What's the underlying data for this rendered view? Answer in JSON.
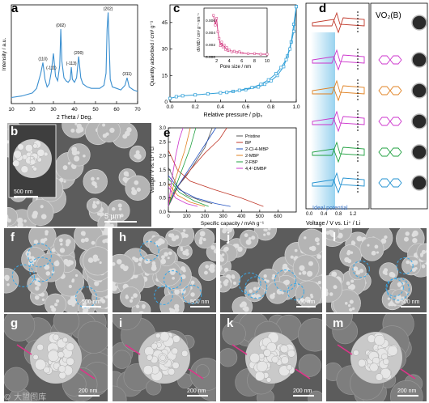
{
  "figure": {
    "panels": {
      "a": "a",
      "b": "b",
      "c": "c",
      "d": "d",
      "e": "e",
      "f": "f",
      "g": "g",
      "h": "h",
      "i": "i",
      "j": "j",
      "k": "k",
      "l": "l",
      "m": "m"
    },
    "watermark": "© 大盟图库"
  },
  "panel_b": {
    "scale_inset": "500 nm",
    "scale_main": "5 μm"
  },
  "sem": {
    "top_scale": "500 nm",
    "bottom_scale": "200 nm"
  },
  "panel_d": {
    "title": "VO₂(B)",
    "ideal_label": "Ideal potential",
    "xlabel": "Voltage / V vs. Li⁺ / Li",
    "ticks": [
      "0.0",
      "0.4",
      "0.8",
      "1.2"
    ]
  },
  "chart_data": [
    {
      "type": "line",
      "panel": "a",
      "xlabel": "2 Theta / Deg.",
      "ylabel": "Intensity / a.u.",
      "xlim": [
        10,
        70
      ],
      "xticks": [
        10,
        20,
        30,
        40,
        50,
        60,
        70
      ],
      "peak_labels": [
        {
          "x": 25,
          "label": "(110)"
        },
        {
          "x": 29,
          "label": "(-111)"
        },
        {
          "x": 33.5,
          "label": "(002)"
        },
        {
          "x": 38.5,
          "label": "(-113)"
        },
        {
          "x": 42,
          "label": "(200)"
        },
        {
          "x": 56,
          "label": "(202)"
        },
        {
          "x": 65,
          "label": "(311)"
        }
      ],
      "x": [
        10,
        15,
        20,
        22,
        24,
        25,
        26,
        27,
        28,
        29,
        30,
        31,
        32,
        33,
        33.5,
        34,
        35,
        36,
        37,
        38,
        38.5,
        39,
        40,
        41,
        42,
        43,
        44,
        46,
        48,
        50,
        52,
        54,
        55,
        55.5,
        56,
        56.5,
        57,
        58,
        60,
        62,
        64,
        65,
        66,
        68,
        70
      ],
      "y": [
        38,
        40,
        44,
        50,
        70,
        84,
        62,
        52,
        56,
        72,
        96,
        66,
        60,
        80,
        128,
        86,
        64,
        60,
        58,
        62,
        78,
        62,
        58,
        64,
        92,
        64,
        56,
        52,
        50,
        50,
        50,
        54,
        70,
        128,
        150,
        108,
        62,
        52,
        50,
        48,
        54,
        64,
        52,
        48,
        46
      ]
    },
    {
      "type": "line",
      "panel": "c",
      "xlabel": "Relative pressure / p/p₀",
      "ylabel": "Quantity adsorbed / cm³ g⁻¹",
      "xlim": [
        0,
        1.0
      ],
      "ylim": [
        0,
        55
      ],
      "xticks": [
        0.0,
        0.2,
        0.4,
        0.6,
        0.8,
        1.0
      ],
      "yticks": [
        0,
        15,
        30,
        45
      ],
      "series": [
        {
          "x": [
            0,
            0.05,
            0.1,
            0.2,
            0.3,
            0.4,
            0.5,
            0.6,
            0.7,
            0.75,
            0.8,
            0.85,
            0.9,
            0.93,
            0.96,
            0.98,
            1.0
          ],
          "y": [
            2,
            3,
            3.5,
            4,
            4.6,
            5.2,
            6,
            7,
            8.5,
            10,
            12,
            15,
            20,
            26,
            34,
            44,
            54
          ]
        },
        {
          "x": [
            0.45,
            0.55,
            0.65,
            0.72,
            0.78,
            0.84,
            0.88,
            0.92,
            0.95,
            0.98,
            1.0
          ],
          "y": [
            5.4,
            6.6,
            8.2,
            10,
            12.5,
            16,
            19.5,
            24,
            30,
            40,
            54
          ]
        }
      ],
      "inset": {
        "xlabel": "Pore size / nm",
        "ylabel": "dV/dD / cm³ g⁻¹ nm⁻¹",
        "xlim": [
          0,
          10
        ],
        "ylim": [
          0,
          0.008
        ],
        "xticks": [
          2,
          4,
          6,
          8,
          10
        ],
        "yticks": [
          0.0,
          0.002,
          0.004,
          0.006
        ],
        "x": [
          1.5,
          1.8,
          2.0,
          2.2,
          2.4,
          2.6,
          2.8,
          3.0,
          3.2,
          3.4,
          3.6,
          3.8,
          4.0,
          4.4,
          4.8,
          5.2,
          5.6,
          6,
          7,
          8,
          9,
          10
        ],
        "y": [
          0.0068,
          0.0052,
          0.0063,
          0.0041,
          0.003,
          0.0018,
          0.0024,
          0.0016,
          0.0019,
          0.0012,
          0.0015,
          0.001,
          0.0011,
          0.0008,
          0.0009,
          0.0007,
          0.0008,
          0.0006,
          0.0005,
          0.0005,
          0.0004,
          0.0004
        ]
      }
    },
    {
      "type": "line",
      "panel": "e",
      "xlabel": "Specific capacity / mAh g⁻¹",
      "ylabel": "Voltage / V vs. Li⁺ / Li",
      "xlim": [
        0,
        700
      ],
      "ylim": [
        0,
        3.0
      ],
      "xticks": [
        0,
        100,
        200,
        300,
        400,
        500,
        600
      ],
      "yticks": [
        0.0,
        0.5,
        1.0,
        1.5,
        2.0,
        2.5,
        3.0
      ],
      "series": [
        {
          "name": "Pristine",
          "color": "#555555",
          "charge": [
            [
              0,
              0.3
            ],
            [
              50,
              0.9
            ],
            [
              100,
              1.3
            ],
            [
              150,
              1.8
            ],
            [
              200,
              2.3
            ],
            [
              240,
              3.0
            ]
          ],
          "discharge": [
            [
              0,
              1.6
            ],
            [
              50,
              0.9
            ],
            [
              100,
              0.6
            ],
            [
              180,
              0.4
            ],
            [
              240,
              0.3
            ]
          ]
        },
        {
          "name": "BP",
          "color": "#c0392b",
          "charge": [
            [
              0,
              0.2
            ],
            [
              60,
              1.0
            ],
            [
              120,
              1.5
            ],
            [
              200,
              2.1
            ],
            [
              280,
              2.6
            ],
            [
              320,
              3.0
            ]
          ],
          "discharge": [
            [
              0,
              2.2
            ],
            [
              50,
              1.5
            ],
            [
              120,
              1.1
            ],
            [
              250,
              0.8
            ],
            [
              400,
              0.5
            ],
            [
              520,
              0.2
            ]
          ]
        },
        {
          "name": "2-Cl-4-MBP",
          "color": "#2050c0",
          "charge": [
            [
              0,
              0.2
            ],
            [
              40,
              0.8
            ],
            [
              100,
              1.4
            ],
            [
              160,
              2.0
            ],
            [
              220,
              2.6
            ],
            [
              260,
              3.0
            ]
          ],
          "discharge": [
            [
              0,
              1.3
            ],
            [
              60,
              0.8
            ],
            [
              150,
              0.5
            ],
            [
              260,
              0.3
            ],
            [
              340,
              0.2
            ]
          ]
        },
        {
          "name": "2-MBP",
          "color": "#e08020",
          "charge": [
            [
              0,
              0.2
            ],
            [
              30,
              1.0
            ],
            [
              60,
              1.6
            ],
            [
              90,
              2.2
            ],
            [
              120,
              3.0
            ]
          ],
          "discharge": [
            [
              0,
              1.0
            ],
            [
              50,
              0.6
            ],
            [
              120,
              0.35
            ],
            [
              200,
              0.2
            ]
          ]
        },
        {
          "name": "2-FBP",
          "color": "#20a040",
          "charge": [
            [
              0,
              0.2
            ],
            [
              40,
              0.9
            ],
            [
              80,
              1.6
            ],
            [
              120,
              2.3
            ],
            [
              150,
              3.0
            ]
          ],
          "discharge": [
            [
              0,
              1.2
            ],
            [
              60,
              0.7
            ],
            [
              140,
              0.4
            ],
            [
              220,
              0.2
            ]
          ]
        },
        {
          "name": "4,4′-DMBP",
          "color": "#cc33cc",
          "charge": [
            [
              0,
              0.2
            ],
            [
              20,
              1.2
            ],
            [
              40,
              2.0
            ],
            [
              60,
              2.6
            ],
            [
              80,
              3.0
            ]
          ],
          "discharge": [
            [
              0,
              0.9
            ],
            [
              40,
              0.5
            ],
            [
              100,
              0.3
            ],
            [
              160,
              0.2
            ]
          ]
        }
      ]
    }
  ]
}
